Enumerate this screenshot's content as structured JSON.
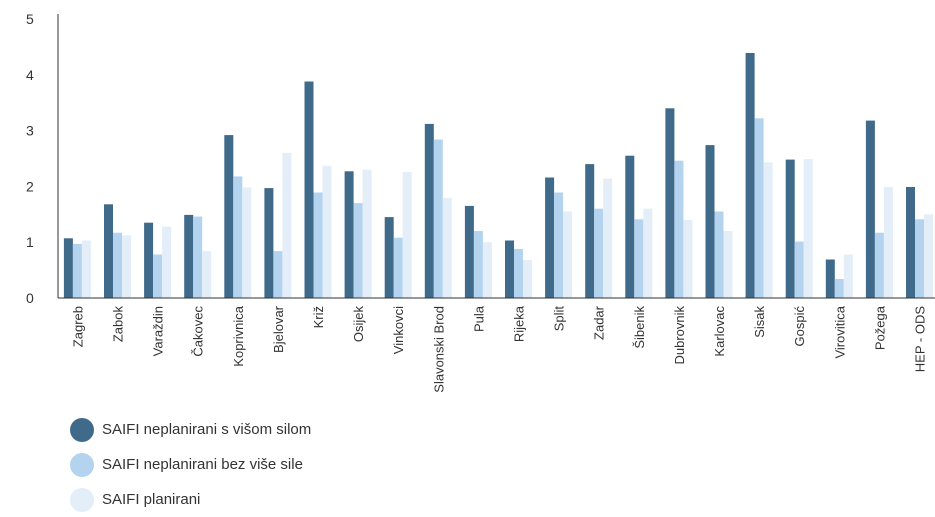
{
  "chart_data": {
    "type": "bar",
    "categories": [
      "Zagreb",
      "Zabok",
      "Varaždin",
      "Čakovec",
      "Koprivnica",
      "Bjelovar",
      "Križ",
      "Osijek",
      "Vinkovci",
      "Slavonski Brod",
      "Pula",
      "Rijeka",
      "Split",
      "Zadar",
      "Šibenik",
      "Dubrovnik",
      "Karlovac",
      "Sisak",
      "Gospić",
      "Virovitica",
      "Požega",
      "HEP - ODS"
    ],
    "series": [
      {
        "name": "SAIFI neplanirani s višom silom",
        "color": "#3f6a8a",
        "values": [
          1.07,
          1.68,
          1.35,
          1.49,
          2.92,
          1.97,
          3.88,
          2.27,
          1.45,
          3.12,
          1.65,
          1.03,
          2.16,
          2.4,
          2.55,
          3.4,
          2.74,
          4.39,
          2.48,
          0.69,
          3.18,
          1.99
        ]
      },
      {
        "name": "SAIFI neplanirani bez više sile",
        "color": "#b3d3ef",
        "values": [
          0.97,
          1.17,
          0.78,
          1.46,
          2.18,
          0.84,
          1.89,
          1.7,
          1.08,
          2.84,
          1.2,
          0.88,
          1.89,
          1.6,
          1.41,
          2.46,
          1.55,
          3.22,
          1.01,
          0.34,
          1.17,
          1.41
        ]
      },
      {
        "name": "SAIFI planirani",
        "color": "#e3eef9",
        "values": [
          1.03,
          1.12,
          1.28,
          0.84,
          1.98,
          2.6,
          2.37,
          2.3,
          2.26,
          1.79,
          1.0,
          0.68,
          1.55,
          2.14,
          1.6,
          1.4,
          1.2,
          2.43,
          2.49,
          0.78,
          1.99,
          1.5
        ]
      }
    ],
    "ylim": [
      0,
      5
    ],
    "yticks": [
      "0",
      "1",
      "2",
      "3",
      "4",
      "5"
    ],
    "grid": false,
    "legend_position": "bottom-left"
  }
}
